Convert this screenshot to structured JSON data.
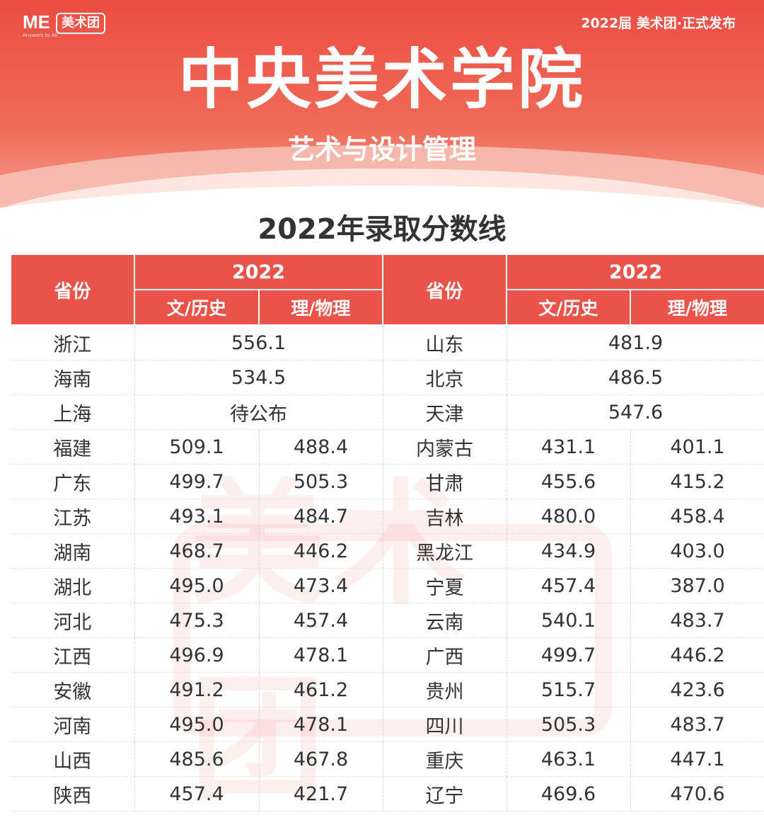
{
  "header": {
    "brand_me": "ME",
    "brand_tagline": "Answers to All",
    "brand_badge": "美术团",
    "release": "2022届 美术团·正式发布",
    "title": "中央美术学院",
    "subtitle": "艺术与设计管理",
    "table_title": "2022年录取分数线"
  },
  "watermark": "美术团",
  "table": {
    "headers": {
      "province": "省份",
      "year": "2022",
      "liberal": "文/历史",
      "science": "理/物理"
    },
    "left": [
      {
        "province": "浙江",
        "merged": "556.1"
      },
      {
        "province": "海南",
        "merged": "534.5"
      },
      {
        "province": "上海",
        "merged": "待公布"
      },
      {
        "province": "福建",
        "liberal": "509.1",
        "science": "488.4"
      },
      {
        "province": "广东",
        "liberal": "499.7",
        "science": "505.3"
      },
      {
        "province": "江苏",
        "liberal": "493.1",
        "science": "484.7"
      },
      {
        "province": "湖南",
        "liberal": "468.7",
        "science": "446.2"
      },
      {
        "province": "湖北",
        "liberal": "495.0",
        "science": "473.4"
      },
      {
        "province": "河北",
        "liberal": "475.3",
        "science": "457.4"
      },
      {
        "province": "江西",
        "liberal": "496.9",
        "science": "478.1"
      },
      {
        "province": "安徽",
        "liberal": "491.2",
        "science": "461.2"
      },
      {
        "province": "河南",
        "liberal": "495.0",
        "science": "478.1"
      },
      {
        "province": "山西",
        "liberal": "485.6",
        "science": "467.8"
      },
      {
        "province": "陕西",
        "liberal": "457.4",
        "science": "421.7"
      }
    ],
    "right": [
      {
        "province": "山东",
        "merged": "481.9"
      },
      {
        "province": "北京",
        "merged": "486.5"
      },
      {
        "province": "天津",
        "merged": "547.6"
      },
      {
        "province": "内蒙古",
        "liberal": "431.1",
        "science": "401.1"
      },
      {
        "province": "甘肃",
        "liberal": "455.6",
        "science": "415.2"
      },
      {
        "province": "吉林",
        "liberal": "480.0",
        "science": "458.4"
      },
      {
        "province": "黑龙江",
        "liberal": "434.9",
        "science": "403.0"
      },
      {
        "province": "宁夏",
        "liberal": "457.4",
        "science": "387.0"
      },
      {
        "province": "云南",
        "liberal": "540.1",
        "science": "483.7"
      },
      {
        "province": "广西",
        "liberal": "499.7",
        "science": "446.2"
      },
      {
        "province": "贵州",
        "liberal": "515.7",
        "science": "423.6"
      },
      {
        "province": "四川",
        "liberal": "505.3",
        "science": "483.7"
      },
      {
        "province": "重庆",
        "liberal": "463.1",
        "science": "447.1"
      },
      {
        "province": "辽宁",
        "liberal": "469.6",
        "science": "470.6"
      }
    ]
  },
  "colors": {
    "accent": "#e9534a",
    "banner_top": "#ec4d42",
    "text": "#333333"
  }
}
